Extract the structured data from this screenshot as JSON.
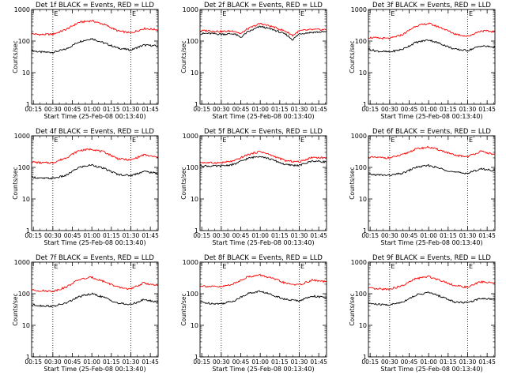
{
  "figure": {
    "colors": {
      "background": "#ffffff",
      "axis": "#000000",
      "events": "#000000",
      "lld": "#ff0000"
    },
    "shared": {
      "type": "line",
      "xlabel": "Start Time (25-Feb-08 00:13:40)",
      "ylabel": "Counts/sec",
      "x_ticks": [
        "00:15",
        "00:30",
        "00:45",
        "01:00",
        "01:15",
        "01:30",
        "01:45"
      ],
      "y_ticks": [
        "1",
        "10",
        "100",
        "1000"
      ],
      "ylim": [
        1,
        1000
      ],
      "yscale": "log",
      "xlim": [
        "00:13:40",
        "01:51:00"
      ],
      "dotted_lines": [
        "00:30",
        "01:30"
      ],
      "marker_label": "E"
    }
  },
  "chart_data": [
    {
      "type": "line",
      "title": "Det 1f BLACK = Events, RED = LLD",
      "series": [
        {
          "x": [
            "00:14",
            "00:20",
            "00:30",
            "00:40",
            "00:50",
            "01:00",
            "01:10",
            "01:20",
            "01:30",
            "01:40",
            "01:50"
          ],
          "values": [
            50,
            45,
            44,
            55,
            95,
            120,
            85,
            60,
            52,
            75,
            70
          ]
        },
        {
          "x": [
            "00:14",
            "00:20",
            "00:30",
            "00:40",
            "00:50",
            "01:00",
            "01:10",
            "01:20",
            "01:30",
            "01:40",
            "01:50"
          ],
          "values": [
            170,
            160,
            165,
            230,
            390,
            440,
            330,
            210,
            180,
            250,
            230
          ]
        }
      ]
    },
    {
      "type": "line",
      "title": "Det 2f BLACK = Events, RED = LLD",
      "series": [
        {
          "x": [
            "00:14",
            "00:20",
            "00:30",
            "00:40",
            "00:45",
            "00:50",
            "01:00",
            "01:10",
            "01:20",
            "01:25",
            "01:30",
            "01:40",
            "01:50"
          ],
          "values": [
            170,
            175,
            165,
            170,
            130,
            190,
            290,
            230,
            160,
            110,
            170,
            190,
            195
          ]
        },
        {
          "x": [
            "00:14",
            "00:20",
            "00:30",
            "00:40",
            "00:45",
            "00:50",
            "01:00",
            "01:10",
            "01:20",
            "01:25",
            "01:30",
            "01:40",
            "01:50"
          ],
          "values": [
            210,
            215,
            200,
            210,
            170,
            240,
            360,
            280,
            200,
            150,
            210,
            230,
            230
          ]
        }
      ]
    },
    {
      "type": "line",
      "title": "Det 3f BLACK = Events, RED = LLD",
      "series": [
        {
          "x": [
            "00:14",
            "00:20",
            "00:30",
            "00:40",
            "00:50",
            "01:00",
            "01:10",
            "01:20",
            "01:30",
            "01:40",
            "01:50"
          ],
          "values": [
            55,
            48,
            45,
            55,
            90,
            110,
            80,
            55,
            50,
            70,
            65
          ]
        },
        {
          "x": [
            "00:14",
            "00:20",
            "00:30",
            "00:40",
            "00:50",
            "01:00",
            "01:10",
            "01:20",
            "01:30",
            "01:40",
            "01:50"
          ],
          "values": [
            130,
            125,
            120,
            160,
            300,
            360,
            260,
            170,
            140,
            210,
            200
          ]
        }
      ]
    },
    {
      "type": "line",
      "title": "Det 4f BLACK = Events, RED = LLD",
      "series": [
        {
          "x": [
            "00:14",
            "00:20",
            "00:30",
            "00:40",
            "00:50",
            "01:00",
            "01:10",
            "01:20",
            "01:30",
            "01:40",
            "01:50"
          ],
          "values": [
            50,
            45,
            45,
            55,
            100,
            120,
            90,
            60,
            55,
            75,
            65
          ]
        },
        {
          "x": [
            "00:14",
            "00:20",
            "00:30",
            "00:40",
            "00:50",
            "01:00",
            "01:10",
            "01:20",
            "01:30",
            "01:40",
            "01:50"
          ],
          "values": [
            150,
            140,
            140,
            200,
            340,
            380,
            300,
            190,
            170,
            250,
            210
          ]
        }
      ]
    },
    {
      "type": "line",
      "title": "Det 5f BLACK = Events, RED = LLD",
      "series": [
        {
          "x": [
            "00:14",
            "00:20",
            "00:30",
            "00:40",
            "00:50",
            "01:00",
            "01:10",
            "01:20",
            "01:30",
            "01:40",
            "01:50"
          ],
          "values": [
            115,
            110,
            110,
            125,
            190,
            230,
            170,
            120,
            115,
            160,
            150
          ]
        },
        {
          "x": [
            "00:14",
            "00:20",
            "00:30",
            "00:40",
            "00:50",
            "01:00",
            "01:10",
            "01:20",
            "01:30",
            "01:40",
            "01:50"
          ],
          "values": [
            145,
            140,
            140,
            160,
            250,
            320,
            230,
            160,
            150,
            210,
            200
          ]
        }
      ]
    },
    {
      "type": "line",
      "title": "Det 6f BLACK = Events, RED = LLD",
      "series": [
        {
          "x": [
            "00:14",
            "00:20",
            "00:30",
            "00:40",
            "00:50",
            "01:00",
            "01:10",
            "01:20",
            "01:30",
            "01:40",
            "01:50"
          ],
          "values": [
            60,
            58,
            56,
            65,
            100,
            115,
            90,
            70,
            65,
            90,
            80
          ]
        },
        {
          "x": [
            "00:14",
            "00:20",
            "00:30",
            "00:40",
            "00:50",
            "01:00",
            "01:10",
            "01:20",
            "01:30",
            "01:40",
            "01:50"
          ],
          "values": [
            210,
            205,
            200,
            250,
            380,
            440,
            340,
            240,
            220,
            320,
            260
          ]
        }
      ]
    },
    {
      "type": "line",
      "title": "Det 7f BLACK = Events, RED = LLD",
      "series": [
        {
          "x": [
            "00:14",
            "00:20",
            "00:30",
            "00:40",
            "00:50",
            "01:00",
            "01:10",
            "01:20",
            "01:30",
            "01:40",
            "01:50"
          ],
          "values": [
            45,
            42,
            40,
            50,
            80,
            100,
            75,
            50,
            45,
            65,
            55
          ]
        },
        {
          "x": [
            "00:14",
            "00:20",
            "00:30",
            "00:40",
            "00:50",
            "01:00",
            "01:10",
            "01:20",
            "01:30",
            "01:40",
            "01:50"
          ],
          "values": [
            130,
            125,
            120,
            160,
            280,
            330,
            240,
            160,
            140,
            220,
            180
          ]
        }
      ]
    },
    {
      "type": "line",
      "title": "Det 8f BLACK = Events, RED = LLD",
      "series": [
        {
          "x": [
            "00:14",
            "00:20",
            "00:30",
            "00:40",
            "00:50",
            "01:00",
            "01:10",
            "01:20",
            "01:30",
            "01:40",
            "01:50"
          ],
          "values": [
            55,
            50,
            48,
            60,
            100,
            120,
            90,
            65,
            60,
            85,
            75
          ]
        },
        {
          "x": [
            "00:14",
            "00:20",
            "00:30",
            "00:40",
            "00:50",
            "01:00",
            "01:10",
            "01:20",
            "01:30",
            "01:40",
            "01:50"
          ],
          "values": [
            180,
            170,
            165,
            210,
            340,
            390,
            300,
            210,
            190,
            270,
            240
          ]
        }
      ]
    },
    {
      "type": "line",
      "title": "Det 9f BLACK = Events, RED = LLD",
      "series": [
        {
          "x": [
            "00:14",
            "00:20",
            "00:30",
            "00:40",
            "00:50",
            "01:00",
            "01:10",
            "01:20",
            "01:30",
            "01:40",
            "01:50"
          ],
          "values": [
            50,
            46,
            44,
            55,
            90,
            110,
            80,
            55,
            52,
            72,
            68
          ]
        },
        {
          "x": [
            "00:14",
            "00:20",
            "00:30",
            "00:40",
            "00:50",
            "01:00",
            "01:10",
            "01:20",
            "01:30",
            "01:40",
            "01:50"
          ],
          "values": [
            150,
            140,
            140,
            180,
            300,
            350,
            260,
            180,
            160,
            240,
            220
          ]
        }
      ]
    }
  ]
}
